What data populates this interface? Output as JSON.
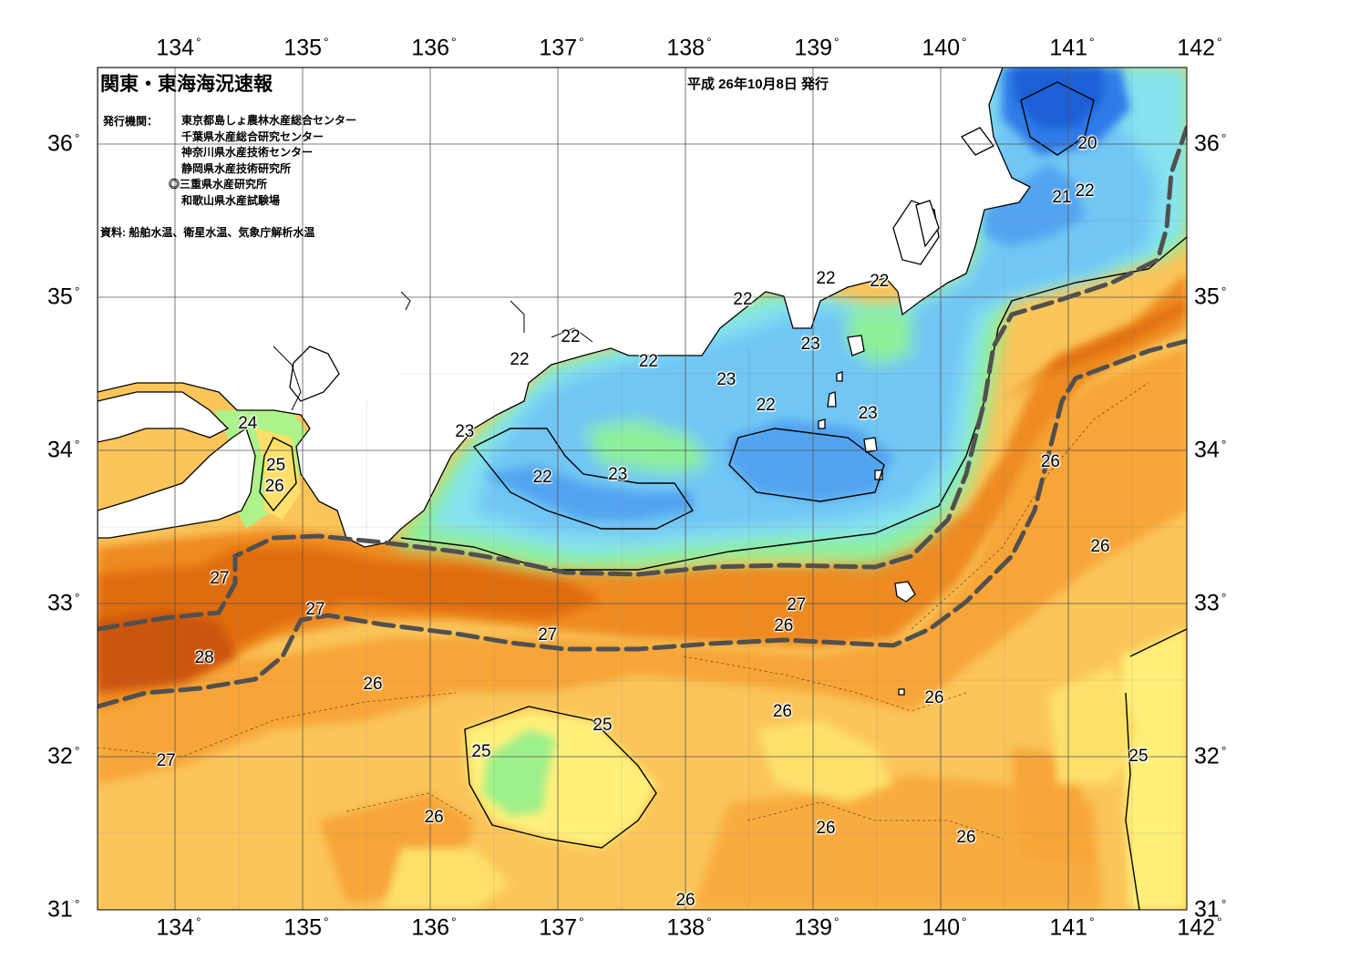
{
  "header": {
    "title": "関東・東海海況速報",
    "issue_date": "平成 26年10月8日 発行",
    "publisher_label": "発行機関：",
    "publishers": [
      "東京都島しょ農林水産総合センター",
      "千葉県水産総合研究センター",
      "神奈川県水産技術センター",
      "静岡県水産技術研究所",
      "◎三重県水産研究所",
      "和歌山県水産試験場"
    ],
    "source": "資料: 船舶水温、衛星水温、気象庁解析水温"
  },
  "axes": {
    "longitudes": [
      134,
      135,
      136,
      137,
      138,
      139,
      140,
      141,
      142
    ],
    "latitudes": [
      31,
      32,
      33,
      34,
      35,
      36
    ],
    "lon_labels": [
      "134",
      "135",
      "136",
      "137",
      "138",
      "139",
      "140",
      "141",
      "142"
    ],
    "lat_labels": [
      "31",
      "32",
      "33",
      "34",
      "35",
      "36"
    ],
    "degree_symbol": "°",
    "lon_range": [
      133.5,
      142.0
    ],
    "lat_range": [
      31.0,
      36.5
    ]
  },
  "map": {
    "legend": "none",
    "isotherm_labels": [
      {
        "text": "20",
        "lon": 141.15,
        "lat": 36.0
      },
      {
        "text": "21",
        "lon": 140.95,
        "lat": 35.65
      },
      {
        "text": "22",
        "lon": 141.13,
        "lat": 35.69
      },
      {
        "text": "22",
        "lon": 138.45,
        "lat": 34.98
      },
      {
        "text": "22",
        "lon": 139.1,
        "lat": 35.12
      },
      {
        "text": "22",
        "lon": 139.52,
        "lat": 35.1
      },
      {
        "text": "22",
        "lon": 137.1,
        "lat": 34.74
      },
      {
        "text": "22",
        "lon": 136.7,
        "lat": 34.59
      },
      {
        "text": "22",
        "lon": 137.71,
        "lat": 34.58
      },
      {
        "text": "23",
        "lon": 138.32,
        "lat": 34.46
      },
      {
        "text": "23",
        "lon": 138.98,
        "lat": 34.69
      },
      {
        "text": "22",
        "lon": 138.63,
        "lat": 34.29
      },
      {
        "text": "23",
        "lon": 139.43,
        "lat": 34.24
      },
      {
        "text": "23",
        "lon": 136.27,
        "lat": 34.12
      },
      {
        "text": "22",
        "lon": 136.88,
        "lat": 33.82
      },
      {
        "text": "23",
        "lon": 137.47,
        "lat": 33.84
      },
      {
        "text": "24",
        "lon": 134.57,
        "lat": 34.17
      },
      {
        "text": "25",
        "lon": 134.79,
        "lat": 33.9
      },
      {
        "text": "26",
        "lon": 134.78,
        "lat": 33.76
      },
      {
        "text": "27",
        "lon": 134.35,
        "lat": 33.16
      },
      {
        "text": "28",
        "lon": 134.23,
        "lat": 32.64
      },
      {
        "text": "27",
        "lon": 135.1,
        "lat": 32.96
      },
      {
        "text": "27",
        "lon": 138.87,
        "lat": 32.99
      },
      {
        "text": "26",
        "lon": 138.77,
        "lat": 32.85
      },
      {
        "text": "27",
        "lon": 136.92,
        "lat": 32.79
      },
      {
        "text": "26",
        "lon": 135.55,
        "lat": 32.47
      },
      {
        "text": "26",
        "lon": 139.95,
        "lat": 32.38
      },
      {
        "text": "26",
        "lon": 138.76,
        "lat": 32.29
      },
      {
        "text": "25",
        "lon": 137.35,
        "lat": 32.2
      },
      {
        "text": "25",
        "lon": 136.4,
        "lat": 32.03
      },
      {
        "text": "27",
        "lon": 133.93,
        "lat": 31.97
      },
      {
        "text": "25",
        "lon": 141.55,
        "lat": 32.0
      },
      {
        "text": "26",
        "lon": 140.86,
        "lat": 33.92
      },
      {
        "text": "26",
        "lon": 141.25,
        "lat": 33.37
      },
      {
        "text": "26",
        "lon": 136.03,
        "lat": 31.6
      },
      {
        "text": "26",
        "lon": 139.1,
        "lat": 31.53
      },
      {
        "text": "26",
        "lon": 140.2,
        "lat": 31.47
      },
      {
        "text": "26",
        "lon": 138.0,
        "lat": 31.06
      }
    ],
    "colors": {
      "t20_below": "#1f5fd6",
      "t20": "#2f7be8",
      "t21": "#52a4f0",
      "t22": "#71c6f4",
      "t22_5": "#86e3f0",
      "t23": "#7fefc8",
      "t23_5": "#8ef09a",
      "t24": "#aef28a",
      "t25": "#fff07a",
      "t25_5": "#fde06b",
      "t26": "#fbc55a",
      "t26_5": "#f7a537",
      "t27": "#ee8a22",
      "t27_5": "#e06d10",
      "t28": "#cc5508",
      "kuroshio_axis": "#505050",
      "land": "#ffffff",
      "grid": "#555555"
    }
  }
}
